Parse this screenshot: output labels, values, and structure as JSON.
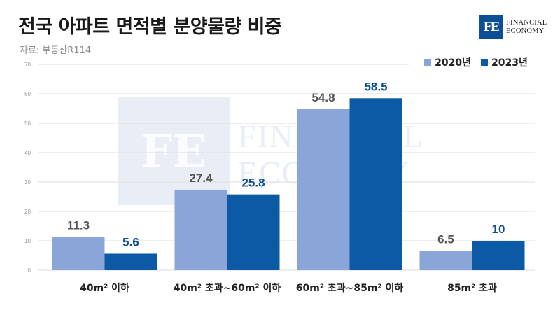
{
  "header": {
    "title": "전국 아파트 면적별 분양물량 비중",
    "source": "자료: 부동산R114"
  },
  "logo": {
    "mark": "FE",
    "line1": "FINANCIAL",
    "line2": "ECONOMY"
  },
  "colors": {
    "series_2020": "#8aa6d8",
    "series_2023": "#0c5aa6",
    "watermark": "#e9eef6",
    "grid": "#dddddd"
  },
  "chart_data": {
    "type": "bar",
    "categories": [
      "40m² 이하",
      "40m² 초과~60m² 이하",
      "60m² 초과~85m² 이하",
      "85m² 초과"
    ],
    "series": [
      {
        "name": "2020년",
        "values": [
          11.3,
          27.4,
          54.8,
          6.5
        ]
      },
      {
        "name": "2023년",
        "values": [
          5.6,
          25.8,
          58.5,
          10
        ]
      }
    ],
    "value_labels": [
      [
        "11.3",
        "27.4",
        "54.8",
        "6.5"
      ],
      [
        "5.6",
        "25.8",
        "58.5",
        "10"
      ]
    ],
    "yticks": [
      0,
      10,
      20,
      30,
      40,
      50,
      60,
      70
    ],
    "ylim": [
      0,
      70
    ],
    "grid": true,
    "legend_position": "top-right"
  }
}
